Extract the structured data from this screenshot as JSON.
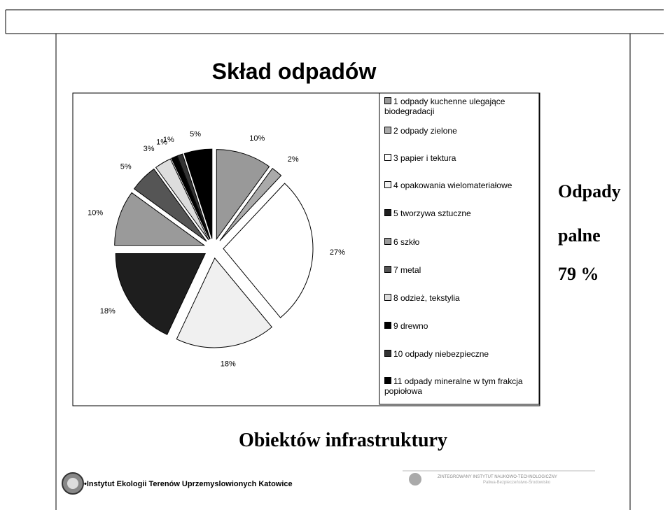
{
  "chart_data": {
    "type": "pie",
    "title": "Skład odpadów",
    "categories": [
      "1 odpady kuchenne ulegające biodegradacji",
      "2 odpady zielone",
      "3 papier i tektura",
      "4 opakowania wielomateriałowe",
      "5 tworzywa sztuczne",
      "6 szkło",
      "7 metal",
      "8 odzież, tekstylia",
      "9 drewno",
      "10 odpady niebezpieczne",
      "11 odpady mineralne w tym frakcja popiołowa"
    ],
    "values": [
      10,
      2,
      27,
      18,
      18,
      10,
      5,
      3,
      1,
      1,
      5
    ],
    "value_labels": [
      "10%",
      "2%",
      "27%",
      "18%",
      "18%",
      "10%",
      "5%",
      "3%",
      "1%",
      "1%",
      "5%"
    ],
    "colors": [
      "#999999",
      "#aaaaaa",
      "#ffffff",
      "#f0f0f0",
      "#1e1e1e",
      "#9a9a9a",
      "#555555",
      "#dddddd",
      "#000000",
      "#333333",
      "#000000"
    ]
  },
  "side_note": [
    "Odpady",
    "palne",
    "79 %"
  ],
  "subtitle": "Obiektów infrastruktury",
  "footer": {
    "left": "•Instytut Ekologii Terenów Uprzemyslowionych Katowice",
    "right_title": "ZINTEGROWANY INSTYTUT NAUKOWO-TECHNOLOGICZNY",
    "right_subtitle": "Paliwa-Bezpieczeństwo-Środowisko"
  }
}
